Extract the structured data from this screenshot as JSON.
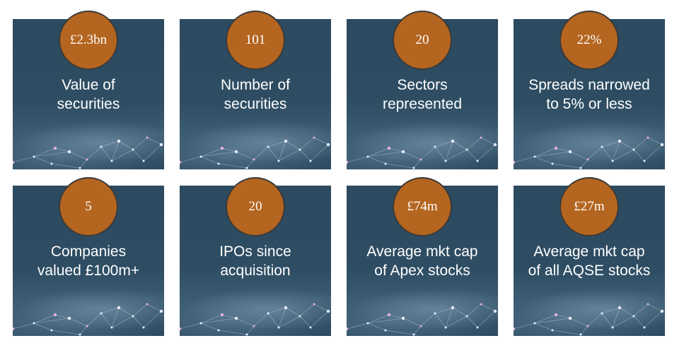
{
  "tiles": [
    {
      "value": "£2.3bn",
      "label": [
        "Value of",
        "securities"
      ]
    },
    {
      "value": "101",
      "label": [
        "Number of",
        "securities"
      ]
    },
    {
      "value": "20",
      "label": [
        "Sectors",
        "represented"
      ]
    },
    {
      "value": "22%",
      "label": [
        "Spreads narrowed",
        "to 5% or less"
      ]
    },
    {
      "value": "5",
      "label": [
        "Companies",
        "valued £100m+"
      ]
    },
    {
      "value": "20",
      "label": [
        "IPOs since",
        "acquisition"
      ]
    },
    {
      "value": "£74m",
      "label": [
        "Average mkt cap",
        "of Apex stocks"
      ]
    },
    {
      "value": "£27m",
      "label": [
        "Average mkt cap",
        "of all AQSE stocks"
      ]
    }
  ]
}
